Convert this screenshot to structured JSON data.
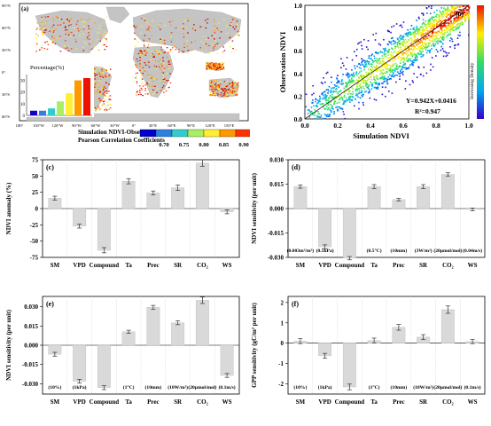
{
  "colors": {
    "bar_fill": "#d9d9d9",
    "bar_stroke": "#bdbdbd",
    "err": "#333333",
    "map_ocean": "#ffffff",
    "map_land": "#c0c0c0",
    "colorbar": [
      "#0000cc",
      "#2e7fe0",
      "#33cccc",
      "#aaee66",
      "#ffee33",
      "#ff9900",
      "#ff3300",
      "#cc0000"
    ]
  },
  "panel_a": {
    "label": "(a)",
    "lat_ticks": [
      "90°N",
      "60°N",
      "30°N",
      "0°",
      "30°S",
      "60°S"
    ],
    "lon_ticks": [
      "180°",
      "150°W",
      "120°W",
      "90°W",
      "60°W",
      "30°W",
      "0°",
      "30°E",
      "60°E",
      "90°E",
      "120°E",
      "150°E"
    ],
    "inset_title": "Percentage(%)",
    "inset_y_ticks": [
      "30",
      "20",
      "10",
      "0"
    ],
    "inset_values": [
      4,
      4,
      6,
      12,
      19,
      30,
      32
    ],
    "caption_line1": "Simulation NDVI-Observation NDVI",
    "caption_line2": "Pearson Correlation Coefficients",
    "colorbar_ticks": [
      "0.70",
      "0.75",
      "0.80",
      "0.85",
      "0.90"
    ]
  },
  "panel_b": {
    "label": "(b)",
    "xlabel": "Simulation NDVI",
    "ylabel": "Observation NDVI",
    "x_ticks": [
      "0.0",
      "0.2",
      "0.4",
      "0.6",
      "0.8",
      "1.0"
    ],
    "y_ticks": [
      "0.0",
      "0.2",
      "0.4",
      "0.6",
      "0.8",
      "1.0"
    ],
    "equation": "Y=0.942X+0.0416",
    "r2": "R²=0.947",
    "density_label": "Increasing Density"
  },
  "chart_data": [
    {
      "type": "bar",
      "label": "(c)",
      "ylabel": "NDVI anomaly (%)",
      "categories": [
        "SM",
        "VPD",
        "Compound",
        "Ta",
        "Prec",
        "SR",
        "CO₂",
        "WS"
      ],
      "values": [
        16,
        -27,
        -64,
        42,
        24,
        32,
        70,
        -5
      ],
      "errors": [
        3,
        3,
        4,
        4,
        3,
        4,
        5,
        3
      ],
      "ylim": [
        -75,
        75
      ],
      "yticks": [
        75,
        50,
        25,
        0,
        -25,
        -50,
        -75
      ],
      "ytick_labels": [
        "75",
        "50",
        "25",
        "0",
        "-25",
        "-50",
        "-75"
      ],
      "annotations": []
    },
    {
      "type": "bar",
      "label": "(d)",
      "ylabel": "NDVI sensitivity (per unit)",
      "categories": [
        "SM",
        "VPD",
        "Compound",
        "Ta",
        "Prec",
        "SR",
        "CO₂",
        "WS"
      ],
      "values": [
        0.0135,
        -0.0235,
        -0.0305,
        0.0135,
        0.0055,
        0.0135,
        0.021,
        -0.0005
      ],
      "errors": [
        0.001,
        0.0012,
        0.001,
        0.0012,
        0.0008,
        0.0012,
        0.001,
        0.0008
      ],
      "ylim": [
        -0.03,
        0.03
      ],
      "yticks": [
        0.03,
        0.015,
        0,
        -0.015,
        -0.03
      ],
      "ytick_labels": [
        "0.030",
        "0.015",
        "0.000",
        "-0.015",
        "-0.030"
      ],
      "annotations": [
        "(0.003m³/m³)",
        "(0.5kPa)",
        "",
        "(0.5°C)",
        "(10mm)",
        "(3W/m²)",
        "(20μmol/mol)",
        "(0.04m/s)"
      ]
    },
    {
      "type": "bar",
      "label": "(e)",
      "ylabel": "NDVI sensitivity (per unit)",
      "categories": [
        "SM",
        "VPD",
        "Compound",
        "Ta",
        "Prec",
        "SR",
        "CO₂",
        "WS"
      ],
      "values": [
        -0.007,
        -0.028,
        -0.033,
        0.0105,
        0.0295,
        0.0175,
        0.035,
        -0.0235
      ],
      "errors": [
        0.0015,
        0.0015,
        0.0015,
        0.0012,
        0.0015,
        0.0015,
        0.0025,
        0.0015
      ],
      "ylim": [
        -0.038,
        0.038
      ],
      "yticks": [
        0.03,
        0.015,
        0,
        -0.015,
        -0.03
      ],
      "ytick_labels": [
        "0.030",
        "0.015",
        "0.000",
        "-0.015",
        "-0.030"
      ],
      "annotations": [
        "(10%)",
        "(1kPa)",
        "",
        "(1°C)",
        "(10mm)",
        "(10W/m²)",
        "(20μmol/mol)",
        "(0.1m/s)"
      ]
    },
    {
      "type": "bar",
      "label": "(f)",
      "ylabel": "GPP sensitivity (gC/m² per unit)",
      "categories": [
        "SM",
        "VPD",
        "Compound",
        "Ta",
        "Prec",
        "SR",
        "CO₂",
        "WS"
      ],
      "values": [
        0.1,
        -0.62,
        -2.15,
        0.13,
        0.78,
        0.3,
        1.65,
        0.08
      ],
      "errors": [
        0.12,
        0.12,
        0.14,
        0.12,
        0.14,
        0.12,
        0.18,
        0.1
      ],
      "ylim": [
        -2.5,
        2.3
      ],
      "yticks": [
        2,
        1,
        0,
        -1,
        -2
      ],
      "ytick_labels": [
        "2",
        "1",
        "0",
        "-1",
        "-2"
      ],
      "annotations": [
        "(10%)",
        "(1kPa)",
        "",
        "(1°C)",
        "(10mm)",
        "(10W/m²)",
        "(20μmol/mol)",
        "(0.1m/s)"
      ]
    }
  ]
}
